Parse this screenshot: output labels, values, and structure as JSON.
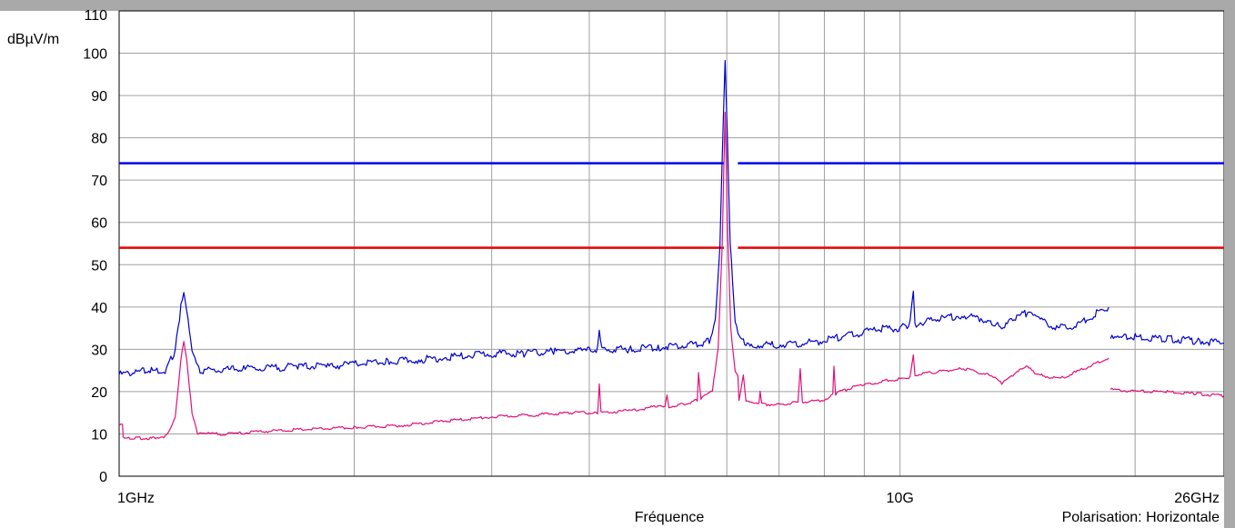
{
  "chart_data": {
    "type": "line",
    "ylabel": "dBµV/m",
    "xlabel": "Fréquence",
    "annotation": "Polarisation: Horizontale",
    "x_scale": "log",
    "xlim": [
      1,
      26
    ],
    "ylim": [
      0,
      110
    ],
    "grid": true,
    "yticks": [
      0,
      10,
      20,
      30,
      40,
      50,
      60,
      70,
      80,
      90,
      100,
      110
    ],
    "xticks": [
      {
        "value": 1,
        "label": "1GHz"
      },
      {
        "value": 10,
        "label": "10G"
      },
      {
        "value": 26,
        "label": "26GHz"
      }
    ],
    "x_gridlines": [
      1,
      2,
      3,
      4,
      5,
      6,
      7,
      8,
      9,
      10,
      20,
      26
    ],
    "limit_lines": [
      {
        "color": "#0000ee",
        "value": 74,
        "segments": [
          [
            1,
            5.95
          ],
          [
            6.2,
            26
          ]
        ]
      },
      {
        "color": "#ee0000",
        "value": 54,
        "segments": [
          [
            1,
            5.95
          ],
          [
            6.2,
            26
          ]
        ]
      }
    ],
    "series": [
      {
        "color": "#0000cc",
        "segments": [
          [
            [
              1.0,
              24
            ],
            [
              1.05,
              24.5
            ],
            [
              1.1,
              25
            ],
            [
              1.15,
              25
            ],
            [
              1.18,
              30
            ],
            [
              1.2,
              40
            ],
            [
              1.21,
              43.5
            ],
            [
              1.22,
              40
            ],
            [
              1.24,
              30
            ],
            [
              1.27,
              25
            ],
            [
              1.35,
              25
            ],
            [
              1.45,
              25.5
            ],
            [
              1.55,
              25.5
            ],
            [
              1.7,
              26
            ],
            [
              1.85,
              26
            ],
            [
              2.0,
              26.5
            ],
            [
              2.2,
              27
            ],
            [
              2.4,
              27.5
            ],
            [
              2.6,
              28
            ],
            [
              2.8,
              28.5
            ],
            [
              3.0,
              29
            ],
            [
              3.3,
              29
            ],
            [
              3.6,
              29.5
            ],
            [
              3.9,
              29.5
            ],
            [
              4.1,
              30
            ],
            [
              4.12,
              34
            ],
            [
              4.15,
              30
            ],
            [
              4.5,
              30
            ],
            [
              4.9,
              30.5
            ],
            [
              5.2,
              31
            ],
            [
              5.5,
              31
            ],
            [
              5.7,
              32
            ],
            [
              5.8,
              37
            ],
            [
              5.88,
              55
            ],
            [
              5.93,
              80
            ],
            [
              5.97,
              97.5
            ],
            [
              6.01,
              80
            ],
            [
              6.06,
              55
            ],
            [
              6.15,
              36
            ],
            [
              6.3,
              32
            ],
            [
              6.5,
              31
            ],
            [
              7.0,
              31
            ],
            [
              7.5,
              31.5
            ],
            [
              8.0,
              32
            ],
            [
              8.4,
              33
            ],
            [
              9.0,
              34
            ],
            [
              9.5,
              35
            ],
            [
              10.0,
              35
            ],
            [
              10.3,
              36
            ],
            [
              10.4,
              43.5
            ],
            [
              10.45,
              36
            ],
            [
              11.0,
              37
            ],
            [
              12.0,
              38
            ],
            [
              13.0,
              37
            ],
            [
              13.5,
              35
            ],
            [
              14.0,
              37
            ],
            [
              14.5,
              38.5
            ],
            [
              15.0,
              37
            ],
            [
              16.0,
              35
            ],
            [
              17.0,
              36
            ],
            [
              18.0,
              39
            ],
            [
              18.5,
              40
            ]
          ],
          [
            [
              18.6,
              32.5
            ],
            [
              19.0,
              32.5
            ],
            [
              20.0,
              33
            ],
            [
              22.0,
              32.5
            ],
            [
              24.0,
              32
            ],
            [
              26.0,
              31.5
            ]
          ]
        ]
      },
      {
        "color": "#e0107a",
        "segments": [
          [
            [
              1.0,
              12
            ],
            [
              1.01,
              12
            ],
            [
              1.012,
              9
            ],
            [
              1.05,
              9
            ],
            [
              1.1,
              9
            ],
            [
              1.15,
              9.5
            ],
            [
              1.18,
              14
            ],
            [
              1.2,
              28
            ],
            [
              1.21,
              32
            ],
            [
              1.22,
              28
            ],
            [
              1.24,
              15
            ],
            [
              1.26,
              10
            ],
            [
              1.3,
              10
            ],
            [
              1.4,
              10
            ],
            [
              1.5,
              10.5
            ],
            [
              1.7,
              11
            ],
            [
              2.0,
              11.5
            ],
            [
              2.3,
              12
            ],
            [
              2.6,
              13
            ],
            [
              3.0,
              14
            ],
            [
              3.4,
              14.5
            ],
            [
              3.8,
              15
            ],
            [
              4.1,
              15
            ],
            [
              4.12,
              21.5
            ],
            [
              4.14,
              15
            ],
            [
              4.5,
              15.5
            ],
            [
              4.9,
              16.5
            ],
            [
              5.0,
              16.5
            ],
            [
              5.03,
              19
            ],
            [
              5.06,
              16.5
            ],
            [
              5.3,
              17
            ],
            [
              5.5,
              18
            ],
            [
              5.52,
              24.5
            ],
            [
              5.56,
              18.5
            ],
            [
              5.75,
              20
            ],
            [
              5.85,
              30
            ],
            [
              5.92,
              55
            ],
            [
              5.97,
              86
            ],
            [
              6.01,
              60
            ],
            [
              6.07,
              35
            ],
            [
              6.15,
              25
            ],
            [
              6.2,
              24
            ],
            [
              6.22,
              18
            ],
            [
              6.3,
              24
            ],
            [
              6.35,
              18
            ],
            [
              6.5,
              17
            ],
            [
              6.6,
              17
            ],
            [
              6.62,
              20
            ],
            [
              6.65,
              17
            ],
            [
              7.0,
              17
            ],
            [
              7.4,
              17.5
            ],
            [
              7.45,
              25.5
            ],
            [
              7.5,
              17.5
            ],
            [
              8.0,
              18
            ],
            [
              8.2,
              19.5
            ],
            [
              8.23,
              26
            ],
            [
              8.27,
              19.5
            ],
            [
              8.7,
              21
            ],
            [
              9.0,
              21.5
            ],
            [
              9.5,
              22.5
            ],
            [
              10.0,
              23
            ],
            [
              10.3,
              23.5
            ],
            [
              10.4,
              29
            ],
            [
              10.45,
              24
            ],
            [
              11.0,
              24.5
            ],
            [
              12.0,
              25.5
            ],
            [
              13.0,
              24
            ],
            [
              13.5,
              22
            ],
            [
              14.0,
              24
            ],
            [
              14.5,
              26
            ],
            [
              15.0,
              24
            ],
            [
              16.0,
              23
            ],
            [
              17.0,
              25
            ],
            [
              18.0,
              27
            ],
            [
              18.5,
              28
            ]
          ],
          [
            [
              18.6,
              20.5
            ],
            [
              20.0,
              20
            ],
            [
              22.0,
              20
            ],
            [
              24.0,
              19.5
            ],
            [
              26.0,
              19
            ]
          ]
        ]
      }
    ]
  }
}
